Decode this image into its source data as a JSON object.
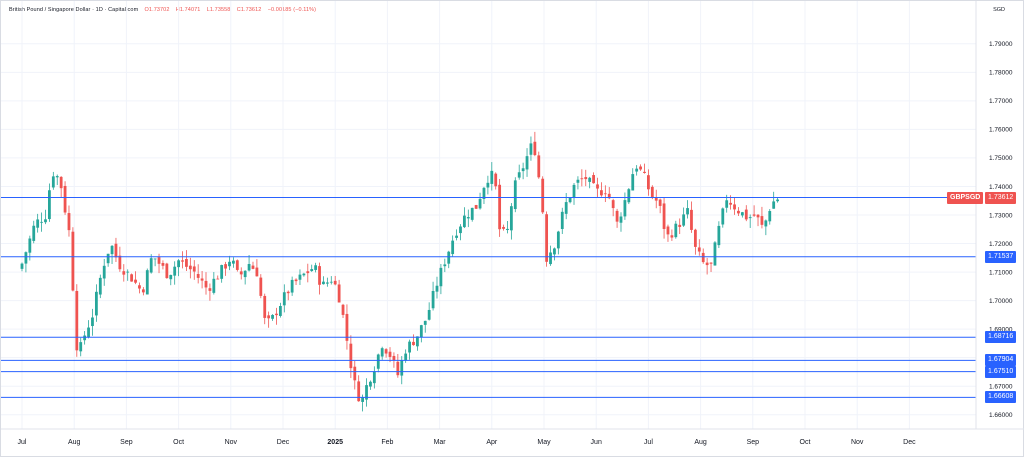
{
  "header": {
    "symbol_name": "British Pound / Singapore Dollar",
    "interval": "1D",
    "source": "Capital.com",
    "open": "O1.73702",
    "high": "H1.74071",
    "low": "L1.73558",
    "close": "C1.73612",
    "change": "−0.00185 (−0.11%)",
    "currency": "SGD"
  },
  "badges": {
    "symbol": "GBPSGD",
    "price": "1.73612"
  },
  "colors": {
    "up": "#26a69a",
    "down": "#ef5350",
    "level_line": "#2962ff",
    "grid": "#f0f3fa"
  },
  "chart_data": {
    "type": "candlestick",
    "y_axis_ticks": [
      "1.79000",
      "1.78000",
      "1.77000",
      "1.76000",
      "1.75000",
      "1.74000",
      "1.73000",
      "1.72000",
      "1.71000",
      "1.70000",
      "1.69000",
      "1.68000",
      "1.67000",
      "1.66000"
    ],
    "ylim": [
      1.655,
      1.805
    ],
    "x_axis_ticks": [
      {
        "label": "Jul",
        "month": 0,
        "bold": false
      },
      {
        "label": "Aug",
        "month": 1,
        "bold": false
      },
      {
        "label": "Sep",
        "month": 2,
        "bold": false
      },
      {
        "label": "Oct",
        "month": 3,
        "bold": false
      },
      {
        "label": "Nov",
        "month": 4,
        "bold": false
      },
      {
        "label": "Dec",
        "month": 5,
        "bold": false
      },
      {
        "label": "2025",
        "month": 6,
        "bold": true
      },
      {
        "label": "Feb",
        "month": 7,
        "bold": false
      },
      {
        "label": "Mar",
        "month": 8,
        "bold": false
      },
      {
        "label": "Apr",
        "month": 9,
        "bold": false
      },
      {
        "label": "May",
        "month": 10,
        "bold": false
      },
      {
        "label": "Jun",
        "month": 11,
        "bold": false
      },
      {
        "label": "Jul",
        "month": 12,
        "bold": false
      },
      {
        "label": "Aug",
        "month": 13,
        "bold": false
      },
      {
        "label": "Sep",
        "month": 14,
        "bold": false
      },
      {
        "label": "Oct",
        "month": 15,
        "bold": false
      },
      {
        "label": "Nov",
        "month": 16,
        "bold": false
      },
      {
        "label": "Dec",
        "month": 17,
        "bold": false
      }
    ],
    "horizontal_levels": [
      {
        "value": 1.73612,
        "label": "1.73612",
        "kind": "price"
      },
      {
        "value": 1.71537,
        "label": "1.71537",
        "kind": "level"
      },
      {
        "value": 1.68716,
        "label": "1.68716",
        "kind": "level"
      },
      {
        "value": 1.67904,
        "label": "1.67904",
        "kind": "level"
      },
      {
        "value": 1.6751,
        "label": "1.67510",
        "kind": "level"
      },
      {
        "value": 1.66608,
        "label": "1.66608",
        "kind": "level"
      }
    ],
    "series": [
      {
        "values": [
          [
            0.0,
            1.713
          ],
          [
            0.25,
            1.727
          ],
          [
            0.45,
            1.73
          ],
          [
            0.55,
            1.742
          ],
          [
            0.62,
            1.746
          ],
          [
            0.75,
            1.74
          ],
          [
            0.88,
            1.726
          ],
          [
            0.95,
            1.72
          ],
          [
            1.0,
            1.69
          ],
          [
            1.08,
            1.681
          ],
          [
            1.2,
            1.688
          ],
          [
            1.35,
            1.695
          ],
          [
            1.55,
            1.712
          ],
          [
            1.7,
            1.72
          ],
          [
            1.85,
            1.713
          ],
          [
            2.1,
            1.708
          ],
          [
            2.3,
            1.703
          ],
          [
            2.5,
            1.716
          ],
          [
            2.8,
            1.709
          ],
          [
            3.0,
            1.714
          ],
          [
            3.3,
            1.71
          ],
          [
            3.55,
            1.704
          ],
          [
            3.8,
            1.71
          ],
          [
            4.0,
            1.715
          ],
          [
            4.15,
            1.708
          ],
          [
            4.35,
            1.713
          ],
          [
            4.5,
            1.71
          ],
          [
            4.65,
            1.693
          ],
          [
            4.75,
            1.692
          ],
          [
            4.95,
            1.699
          ],
          [
            5.15,
            1.705
          ],
          [
            5.4,
            1.709
          ],
          [
            5.6,
            1.712
          ],
          [
            5.75,
            1.705
          ],
          [
            5.95,
            1.708
          ],
          [
            6.1,
            1.7
          ],
          [
            6.2,
            1.689
          ],
          [
            6.35,
            1.672
          ],
          [
            6.5,
            1.664
          ],
          [
            6.6,
            1.67
          ],
          [
            6.75,
            1.677
          ],
          [
            6.9,
            1.685
          ],
          [
            7.05,
            1.681
          ],
          [
            7.2,
            1.674
          ],
          [
            7.35,
            1.683
          ],
          [
            7.55,
            1.687
          ],
          [
            7.75,
            1.694
          ],
          [
            7.95,
            1.706
          ],
          [
            8.1,
            1.714
          ],
          [
            8.3,
            1.724
          ],
          [
            8.5,
            1.73
          ],
          [
            8.7,
            1.733
          ],
          [
            8.9,
            1.743
          ],
          [
            9.05,
            1.744
          ],
          [
            9.15,
            1.725
          ],
          [
            9.28,
            1.722
          ],
          [
            9.42,
            1.739
          ],
          [
            9.6,
            1.747
          ],
          [
            9.8,
            1.756
          ],
          [
            9.95,
            1.737
          ],
          [
            10.05,
            1.715
          ],
          [
            10.2,
            1.72
          ],
          [
            10.4,
            1.733
          ],
          [
            10.6,
            1.741
          ],
          [
            10.8,
            1.743
          ],
          [
            11.0,
            1.738
          ],
          [
            11.2,
            1.739
          ],
          [
            11.4,
            1.727
          ],
          [
            11.55,
            1.735
          ],
          [
            11.75,
            1.748
          ],
          [
            11.9,
            1.744
          ],
          [
            12.05,
            1.737
          ],
          [
            12.2,
            1.734
          ],
          [
            12.35,
            1.722
          ],
          [
            12.55,
            1.726
          ],
          [
            12.75,
            1.731
          ],
          [
            12.9,
            1.718
          ],
          [
            13.05,
            1.713
          ],
          [
            13.2,
            1.712
          ],
          [
            13.35,
            1.725
          ],
          [
            13.5,
            1.736
          ],
          [
            13.7,
            1.732
          ],
          [
            13.9,
            1.729
          ],
          [
            14.05,
            1.73
          ],
          [
            14.2,
            1.725
          ],
          [
            14.35,
            1.734
          ],
          [
            14.5,
            1.7361
          ]
        ]
      }
    ]
  }
}
